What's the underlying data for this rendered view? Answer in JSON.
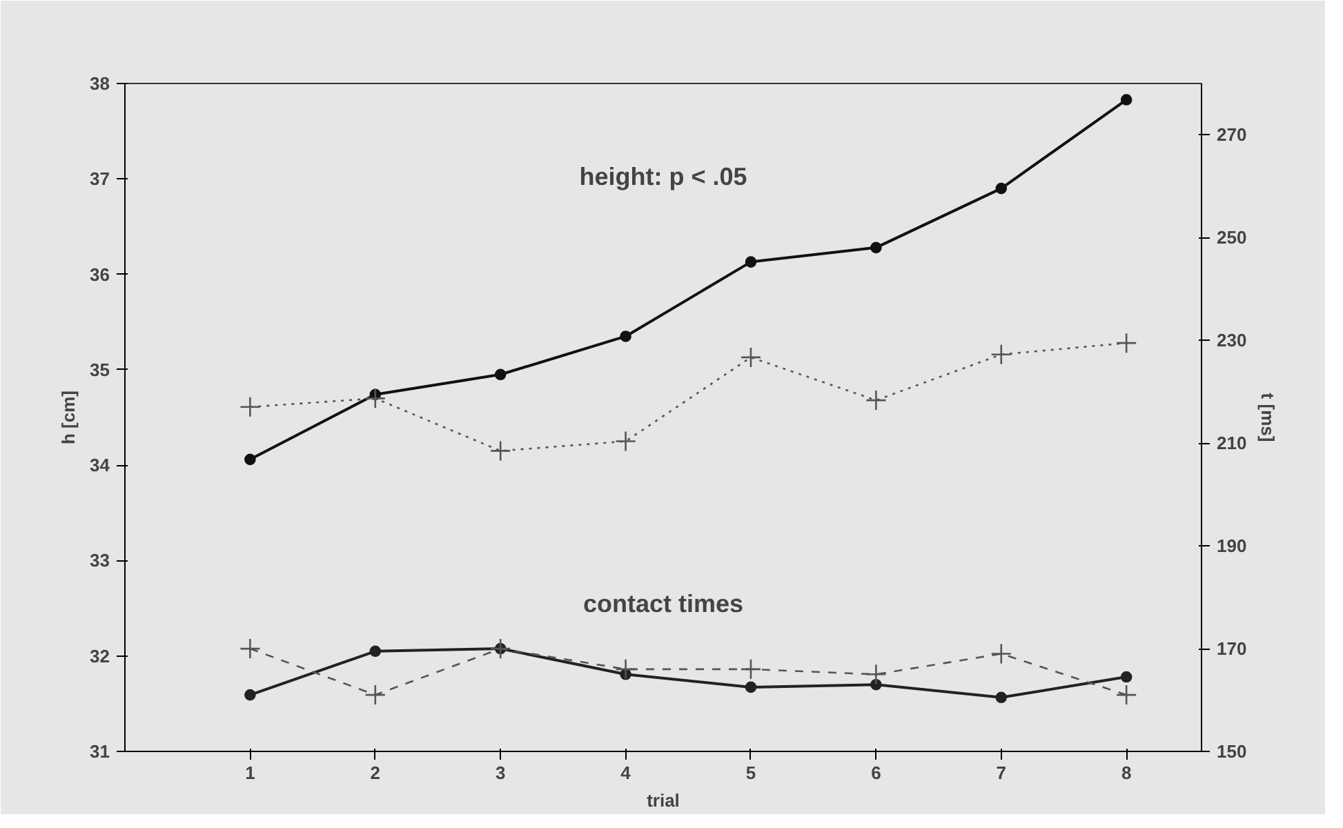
{
  "chart_data": {
    "type": "line",
    "xlabel": "trial",
    "ylabel": "h [cm]",
    "y2label": "t [ms]",
    "categories": [
      "1",
      "2",
      "3",
      "4",
      "5",
      "6",
      "7",
      "8"
    ],
    "series": [
      {
        "color": "#111111",
        "marker": "circle",
        "line_style": "solid",
        "values": [
          34.06,
          34.74,
          34.95,
          35.35,
          36.13,
          36.28,
          36.9,
          37.83
        ]
      },
      {
        "color": "#555555",
        "marker": "cross",
        "line_style": "dotted",
        "values": [
          34.61,
          34.7,
          34.15,
          34.25,
          35.13,
          34.68,
          35.16,
          35.28
        ]
      },
      {
        "color": "#222222",
        "marker": "circle",
        "line_style": "solid",
        "axis": "y2",
        "values": [
          161,
          169.5,
          170,
          165,
          162.5,
          163,
          160.5,
          164.5
        ]
      },
      {
        "color": "#555555",
        "marker": "cross",
        "line_style": "dashed",
        "axis": "y2",
        "values": [
          170,
          161,
          170,
          166,
          166,
          165,
          169,
          161
        ]
      }
    ],
    "ylim": [
      31,
      38
    ],
    "yticks": [
      31,
      32,
      33,
      34,
      35,
      36,
      37,
      38
    ],
    "y2lim": [
      150,
      280
    ],
    "y2ticks": [
      150,
      170,
      190,
      210,
      230,
      250,
      270
    ],
    "annotations": [
      "height: p < .05",
      "contact times"
    ],
    "grid": false
  }
}
